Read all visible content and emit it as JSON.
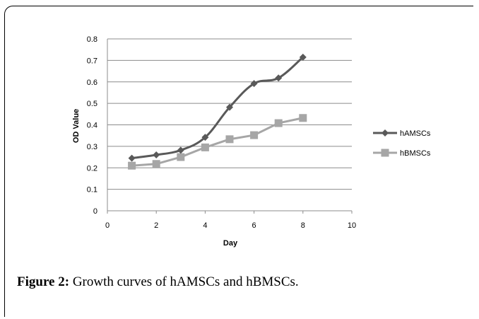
{
  "chart_data": {
    "type": "line",
    "xlabel": "Day",
    "ylabel": "OD Value",
    "xlim": [
      0,
      10
    ],
    "ylim": [
      0,
      0.8
    ],
    "x_ticks": [
      "0",
      "2",
      "4",
      "6",
      "8",
      "10"
    ],
    "y_ticks": [
      "0",
      "0.1",
      "0.2",
      "0.3",
      "0.4",
      "0.5",
      "0.6",
      "0.7",
      "0.8"
    ],
    "grid": true,
    "legend_position": "right",
    "series": [
      {
        "name": "hAMSCs",
        "color": "#595959",
        "marker": "diamond",
        "smooth": true,
        "x": [
          1,
          2,
          3,
          4,
          5,
          6,
          7,
          8
        ],
        "y": [
          0.245,
          0.26,
          0.282,
          0.342,
          0.482,
          0.592,
          0.618,
          0.715
        ]
      },
      {
        "name": "hBMSCs",
        "color": "#a6a6a6",
        "marker": "square",
        "smooth": false,
        "x": [
          1,
          2,
          3,
          4,
          5,
          6,
          7,
          8
        ],
        "y": [
          0.21,
          0.218,
          0.25,
          0.295,
          0.333,
          0.352,
          0.408,
          0.432
        ]
      }
    ]
  },
  "caption": {
    "label": "Figure 2:",
    "text": " Growth curves of hAMSCs and hBMSCs."
  }
}
